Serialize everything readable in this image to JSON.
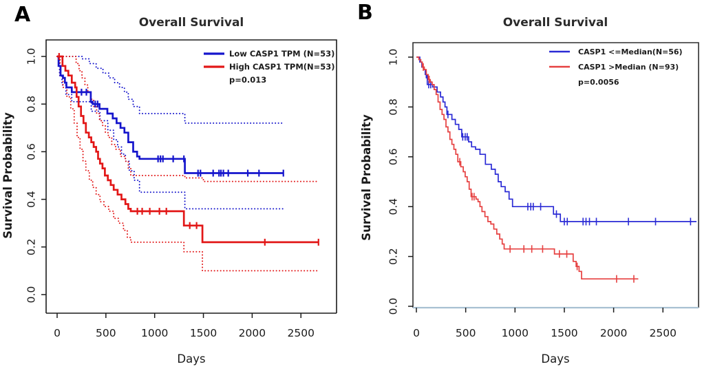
{
  "figure": {
    "background": "#ffffff"
  },
  "chart_data": [
    {
      "type": "line",
      "subtype": "kaplan-meier",
      "panel_label": "A",
      "title": "Overall Survival",
      "xlabel": "Days",
      "ylabel": "Survival Probability",
      "x_ticks": [
        0,
        500,
        1000,
        1500,
        2000,
        2500
      ],
      "y_ticks": [
        1.0,
        0.8,
        0.6,
        0.4,
        0.2,
        0.0
      ],
      "xlim": [
        0,
        2865
      ],
      "ylim": [
        0,
        1
      ],
      "grid": false,
      "legend": {
        "position": "top-right",
        "entries": [
          {
            "label": "Low CASP1 TPM (N=53)",
            "color": "#1515CC"
          },
          {
            "label": "High CASP1 TPM(N=53)",
            "color": "#E21717"
          }
        ],
        "p_value": "p=0.013"
      },
      "series": [
        {
          "name": "low-casp1-upper-ci",
          "role": "ci",
          "style": "dotted",
          "color": "#1515CC",
          "end_day": 2320,
          "censor_days": [],
          "points": [
            [
              0,
              1
            ],
            [
              260,
              0.99
            ],
            [
              330,
              0.97
            ],
            [
              400,
              0.95
            ],
            [
              470,
              0.93
            ],
            [
              530,
              0.91
            ],
            [
              590,
              0.89
            ],
            [
              640,
              0.87
            ],
            [
              690,
              0.85
            ],
            [
              730,
              0.82
            ],
            [
              780,
              0.79
            ],
            [
              845,
              0.76
            ],
            [
              1310,
              0.72
            ]
          ]
        },
        {
          "name": "low-casp1-lower-ci",
          "role": "ci",
          "style": "dotted",
          "color": "#1515CC",
          "end_day": 2320,
          "censor_days": [],
          "points": [
            [
              0,
              1
            ],
            [
              25,
              0.92
            ],
            [
              50,
              0.88
            ],
            [
              90,
              0.84
            ],
            [
              150,
              0.81
            ],
            [
              350,
              0.77
            ],
            [
              440,
              0.73
            ],
            [
              520,
              0.69
            ],
            [
              580,
              0.65
            ],
            [
              620,
              0.62
            ],
            [
              660,
              0.59
            ],
            [
              700,
              0.56
            ],
            [
              740,
              0.52
            ],
            [
              790,
              0.48
            ],
            [
              845,
              0.43
            ],
            [
              1310,
              0.36
            ]
          ]
        },
        {
          "name": "high-casp1-upper-ci",
          "role": "ci",
          "style": "dotted",
          "color": "#E21717",
          "end_day": 2680,
          "censor_days": [],
          "points": [
            [
              0,
              1
            ],
            [
              195,
              0.97
            ],
            [
              225,
              0.94
            ],
            [
              255,
              0.91
            ],
            [
              285,
              0.88
            ],
            [
              315,
              0.85
            ],
            [
              345,
              0.82
            ],
            [
              375,
              0.79
            ],
            [
              405,
              0.76
            ],
            [
              435,
              0.73
            ],
            [
              465,
              0.71
            ],
            [
              495,
              0.68
            ],
            [
              525,
              0.66
            ],
            [
              560,
              0.63
            ],
            [
              600,
              0.61
            ],
            [
              650,
              0.58
            ],
            [
              700,
              0.56
            ],
            [
              730,
              0.53
            ],
            [
              755,
              0.5
            ],
            [
              1310,
              0.49
            ],
            [
              1500,
              0.475
            ]
          ]
        },
        {
          "name": "high-casp1-lower-ci",
          "role": "ci",
          "style": "dotted",
          "color": "#E21717",
          "end_day": 2680,
          "censor_days": [],
          "points": [
            [
              0,
              1
            ],
            [
              30,
              0.92
            ],
            [
              60,
              0.87
            ],
            [
              100,
              0.83
            ],
            [
              140,
              0.78
            ],
            [
              175,
              0.72
            ],
            [
              205,
              0.66
            ],
            [
              235,
              0.61
            ],
            [
              265,
              0.56
            ],
            [
              295,
              0.52
            ],
            [
              330,
              0.48
            ],
            [
              365,
              0.45
            ],
            [
              400,
              0.42
            ],
            [
              440,
              0.39
            ],
            [
              480,
              0.37
            ],
            [
              530,
              0.35
            ],
            [
              580,
              0.32
            ],
            [
              630,
              0.3
            ],
            [
              680,
              0.27
            ],
            [
              720,
              0.24
            ],
            [
              755,
              0.22
            ],
            [
              1300,
              0.18
            ],
            [
              1490,
              0.1
            ]
          ]
        },
        {
          "name": "low-casp1-tpm",
          "role": "km",
          "style": "solid",
          "color": "#1515CC",
          "end_day": 2320,
          "censor_days": [
            250,
            300,
            390,
            415,
            1035,
            1060,
            1085,
            1190,
            1300,
            1445,
            1470,
            1600,
            1660,
            1680,
            1705,
            1755,
            1955,
            2070,
            2320
          ],
          "points": [
            [
              0,
              1
            ],
            [
              15,
              0.96
            ],
            [
              35,
              0.92
            ],
            [
              60,
              0.91
            ],
            [
              80,
              0.89
            ],
            [
              95,
              0.87
            ],
            [
              150,
              0.85
            ],
            [
              345,
              0.81
            ],
            [
              365,
              0.8
            ],
            [
              435,
              0.78
            ],
            [
              515,
              0.76
            ],
            [
              570,
              0.74
            ],
            [
              610,
              0.72
            ],
            [
              650,
              0.7
            ],
            [
              690,
              0.68
            ],
            [
              730,
              0.64
            ],
            [
              780,
              0.6
            ],
            [
              820,
              0.58
            ],
            [
              845,
              0.57
            ],
            [
              1310,
              0.51
            ]
          ]
        },
        {
          "name": "high-casp1-tpm",
          "role": "km",
          "style": "solid",
          "color": "#E21717",
          "end_day": 2680,
          "censor_days": [
            20,
            823,
            872,
            950,
            1049,
            1120,
            1360,
            1430,
            2130,
            2680
          ],
          "points": [
            [
              0,
              1
            ],
            [
              55,
              0.96
            ],
            [
              85,
              0.94
            ],
            [
              115,
              0.92
            ],
            [
              150,
              0.89
            ],
            [
              185,
              0.87
            ],
            [
              200,
              0.83
            ],
            [
              220,
              0.79
            ],
            [
              245,
              0.75
            ],
            [
              270,
              0.72
            ],
            [
              295,
              0.68
            ],
            [
              325,
              0.66
            ],
            [
              350,
              0.64
            ],
            [
              375,
              0.62
            ],
            [
              400,
              0.6
            ],
            [
              420,
              0.57
            ],
            [
              440,
              0.55
            ],
            [
              465,
              0.53
            ],
            [
              490,
              0.5
            ],
            [
              520,
              0.48
            ],
            [
              550,
              0.46
            ],
            [
              580,
              0.44
            ],
            [
              620,
              0.42
            ],
            [
              660,
              0.4
            ],
            [
              700,
              0.38
            ],
            [
              730,
              0.36
            ],
            [
              755,
              0.35
            ],
            [
              1300,
              0.29
            ],
            [
              1490,
              0.22
            ]
          ]
        }
      ]
    },
    {
      "type": "line",
      "subtype": "kaplan-meier",
      "panel_label": "B",
      "title": "Overall Survival",
      "xlabel": "Days",
      "ylabel": "Survival Probability",
      "x_ticks": [
        0,
        500,
        1000,
        1500,
        2000,
        2500
      ],
      "y_ticks": [
        1.0,
        0.8,
        0.6,
        0.4,
        0.2,
        0.0
      ],
      "xlim": [
        0,
        2900
      ],
      "ylim": [
        0,
        1
      ],
      "grid": false,
      "legend": {
        "position": "top-right",
        "entries": [
          {
            "label": "CASP1 <=Median(N=56)",
            "color": "#2A2AD5"
          },
          {
            "label": "CASP1 >Median (N=93)",
            "color": "#E64040"
          }
        ],
        "p_value": "p=0.0056"
      },
      "series": [
        {
          "name": "casp1-le-median",
          "role": "km",
          "style": "solid",
          "color": "#2A2AD5",
          "end_day": 2840,
          "censor_days": [
            100,
            125,
            145,
            320,
            470,
            495,
            515,
            1130,
            1160,
            1185,
            1260,
            1420,
            1500,
            1530,
            1690,
            1720,
            1755,
            1825,
            2150,
            2425,
            2780
          ],
          "points": [
            [
              0,
              1
            ],
            [
              35,
              0.98
            ],
            [
              55,
              0.96
            ],
            [
              75,
              0.95
            ],
            [
              90,
              0.93
            ],
            [
              110,
              0.89
            ],
            [
              165,
              0.88
            ],
            [
              210,
              0.86
            ],
            [
              245,
              0.84
            ],
            [
              270,
              0.82
            ],
            [
              290,
              0.8
            ],
            [
              310,
              0.77
            ],
            [
              360,
              0.75
            ],
            [
              395,
              0.73
            ],
            [
              430,
              0.71
            ],
            [
              460,
              0.68
            ],
            [
              530,
              0.66
            ],
            [
              560,
              0.64
            ],
            [
              600,
              0.63
            ],
            [
              645,
              0.61
            ],
            [
              700,
              0.57
            ],
            [
              760,
              0.55
            ],
            [
              800,
              0.53
            ],
            [
              830,
              0.5
            ],
            [
              860,
              0.48
            ],
            [
              900,
              0.46
            ],
            [
              940,
              0.43
            ],
            [
              975,
              0.4
            ],
            [
              1390,
              0.37
            ],
            [
              1460,
              0.34
            ]
          ]
        },
        {
          "name": "casp1-gt-median",
          "role": "km",
          "style": "solid",
          "color": "#E64040",
          "end_day": 2250,
          "censor_days": [
            70,
            130,
            440,
            565,
            585,
            950,
            1090,
            1170,
            1280,
            1450,
            1525,
            1630,
            2030,
            2205
          ],
          "points": [
            [
              0,
              1
            ],
            [
              25,
              0.99
            ],
            [
              45,
              0.98
            ],
            [
              60,
              0.96
            ],
            [
              80,
              0.95
            ],
            [
              100,
              0.93
            ],
            [
              120,
              0.91
            ],
            [
              140,
              0.9
            ],
            [
              160,
              0.89
            ],
            [
              180,
              0.87
            ],
            [
              200,
              0.85
            ],
            [
              220,
              0.82
            ],
            [
              240,
              0.79
            ],
            [
              260,
              0.77
            ],
            [
              280,
              0.75
            ],
            [
              300,
              0.72
            ],
            [
              320,
              0.7
            ],
            [
              340,
              0.67
            ],
            [
              360,
              0.65
            ],
            [
              380,
              0.63
            ],
            [
              400,
              0.61
            ],
            [
              420,
              0.58
            ],
            [
              450,
              0.56
            ],
            [
              475,
              0.54
            ],
            [
              495,
              0.52
            ],
            [
              515,
              0.5
            ],
            [
              535,
              0.47
            ],
            [
              555,
              0.44
            ],
            [
              605,
              0.43
            ],
            [
              625,
              0.42
            ],
            [
              645,
              0.4
            ],
            [
              665,
              0.38
            ],
            [
              695,
              0.36
            ],
            [
              725,
              0.34
            ],
            [
              755,
              0.33
            ],
            [
              785,
              0.31
            ],
            [
              815,
              0.29
            ],
            [
              845,
              0.27
            ],
            [
              870,
              0.25
            ],
            [
              890,
              0.23
            ],
            [
              1400,
              0.21
            ],
            [
              1590,
              0.18
            ],
            [
              1620,
              0.16
            ],
            [
              1650,
              0.14
            ],
            [
              1675,
              0.11
            ]
          ]
        }
      ]
    }
  ]
}
